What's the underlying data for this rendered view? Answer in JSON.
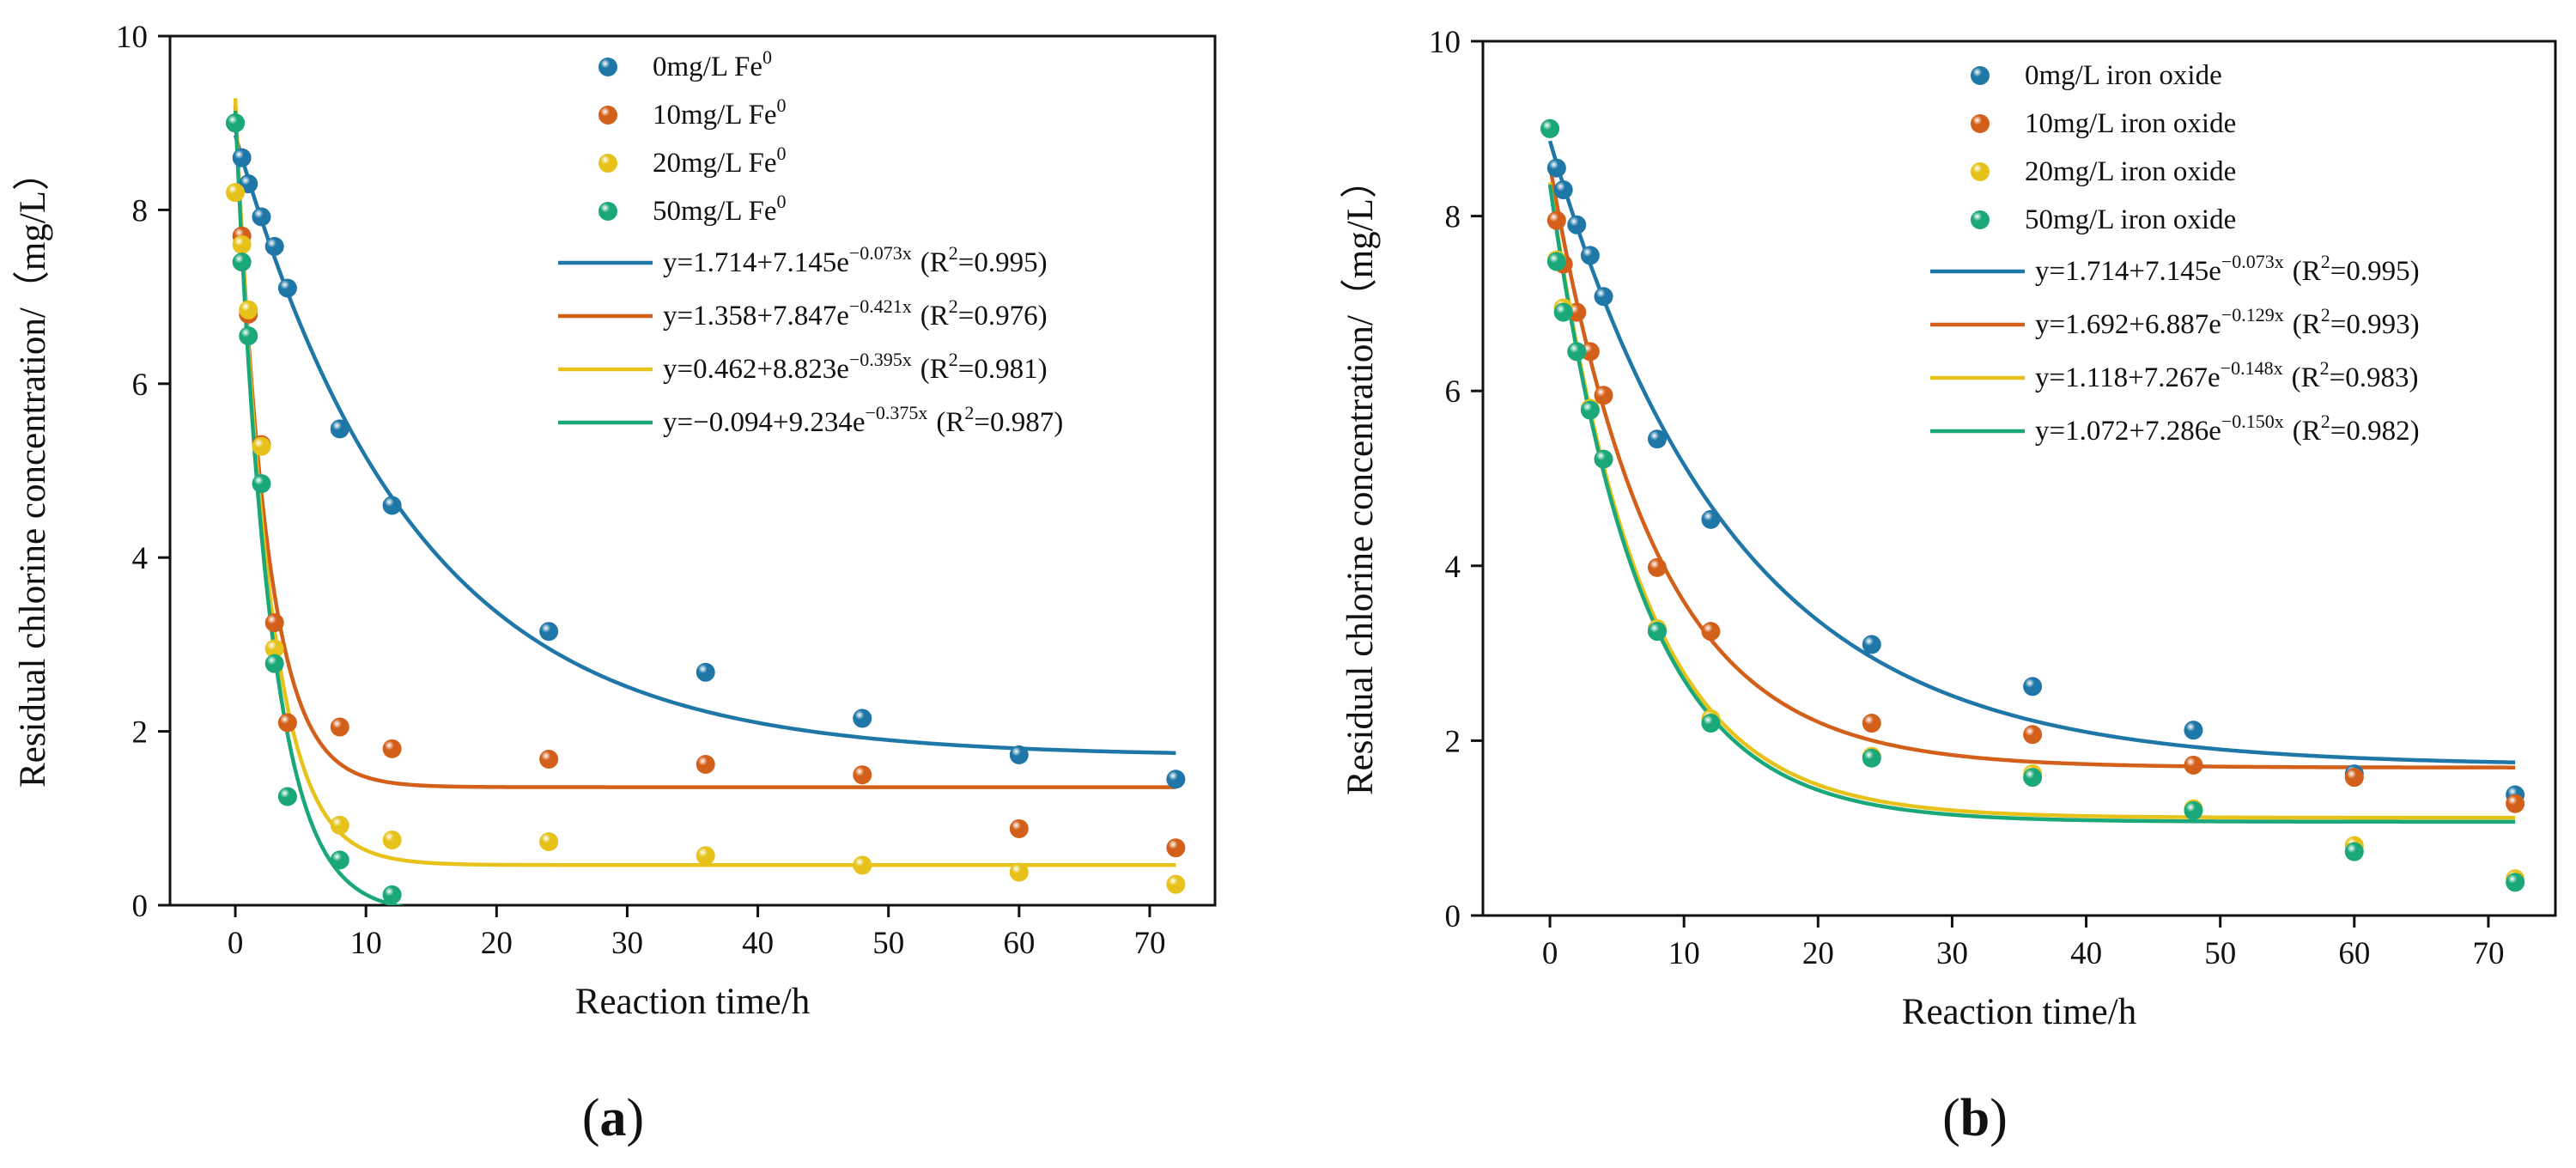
{
  "figure": {
    "panels": [
      {
        "label": "a",
        "title": "",
        "xlabel": "Reaction time/h",
        "ylabel": "Residual chlorine concentration/（mg/L）",
        "legend_position": "top-right",
        "xlim": [
          -5,
          75
        ],
        "ylim": [
          0,
          10
        ],
        "xticks": [
          0,
          10,
          20,
          30,
          40,
          50,
          60,
          70
        ],
        "yticks": [
          0,
          2,
          4,
          6,
          8,
          10
        ],
        "series": [
          {
            "name": "0mg/L Fe",
            "name_sup": "0",
            "color": "#1f77a8",
            "x": [
              0,
              0.5,
              1,
              2,
              3,
              4,
              8,
              12,
              24,
              36,
              48,
              60,
              72
            ],
            "y": [
              9.0,
              8.6,
              8.3,
              7.92,
              7.58,
              7.1,
              5.48,
              4.6,
              3.15,
              2.68,
              2.15,
              1.73,
              1.45
            ],
            "fit": {
              "a": 1.714,
              "b": 7.145,
              "k": 0.073,
              "label": "y=1.714+7.145e",
              "exp": "−0.073x",
              "r2": "(R",
              "r2_tail": "=0.995)"
            }
          },
          {
            "name": "10mg/L Fe",
            "name_sup": "0",
            "color": "#d2601a",
            "x": [
              0.5,
              1,
              2,
              3,
              4,
              8,
              12,
              24,
              36,
              48,
              60,
              72
            ],
            "y": [
              7.7,
              6.8,
              5.3,
              3.25,
              2.1,
              2.05,
              1.8,
              1.68,
              1.62,
              1.5,
              0.88,
              0.66
            ],
            "fit": {
              "a": 1.358,
              "b": 7.847,
              "k": 0.421,
              "label": "y=1.358+7.847e",
              "exp": "−0.421x",
              "r2": "(R",
              "r2_tail": "=0.976)"
            }
          },
          {
            "name": "20mg/L Fe",
            "name_sup": "0",
            "color": "#e6c21a",
            "x": [
              0,
              0.5,
              1,
              2,
              3,
              4,
              8,
              12,
              24,
              36,
              48,
              60,
              72
            ],
            "y": [
              8.2,
              7.6,
              6.85,
              5.28,
              2.95,
              1.25,
              0.92,
              0.75,
              0.73,
              0.57,
              0.46,
              0.38,
              0.24
            ],
            "fit": {
              "a": 0.462,
              "b": 8.823,
              "k": 0.395,
              "label": "y=0.462+8.823e",
              "exp": "−0.395x",
              "r2": "(R",
              "r2_tail": "=0.981)"
            }
          },
          {
            "name": "50mg/L Fe",
            "name_sup": "0",
            "color": "#1aa87a",
            "x": [
              0,
              0.5,
              1,
              2,
              3,
              4,
              8,
              12
            ],
            "y": [
              9.0,
              7.4,
              6.55,
              4.85,
              2.78,
              1.25,
              0.52,
              0.12
            ],
            "fit": {
              "a": -0.094,
              "b": 9.234,
              "k": 0.375,
              "label": "y=−0.094+9.234e",
              "exp": "−0.375x",
              "r2": "(R",
              "r2_tail": "=0.987)"
            }
          }
        ]
      },
      {
        "label": "b",
        "title": "",
        "xlabel": "Reaction time/h",
        "ylabel": "Residual chlorine concentration/（mg/L）",
        "legend_position": "top-right",
        "xlim": [
          -5,
          75
        ],
        "ylim": [
          0,
          10
        ],
        "xticks": [
          0,
          10,
          20,
          30,
          40,
          50,
          60,
          70
        ],
        "yticks": [
          0,
          2,
          4,
          6,
          8,
          10
        ],
        "series": [
          {
            "name": "0mg/L iron oxide",
            "name_sup": "",
            "color": "#1f77a8",
            "x": [
              0,
              0.5,
              1,
              2,
              3,
              4,
              8,
              12,
              24,
              36,
              48,
              60,
              72
            ],
            "y": [
              9.0,
              8.55,
              8.3,
              7.9,
              7.55,
              7.08,
              5.45,
              4.53,
              3.1,
              2.62,
              2.12,
              1.62,
              1.38
            ],
            "fit": {
              "a": 1.714,
              "b": 7.145,
              "k": 0.073,
              "label": "y=1.714+7.145e",
              "exp": "−0.073x",
              "r2": "(R",
              "r2_tail": "=0.995)"
            }
          },
          {
            "name": "10mg/L iron oxide",
            "name_sup": "",
            "color": "#d2601a",
            "x": [
              0.5,
              1,
              2,
              3,
              4,
              8,
              12,
              24,
              36,
              48,
              60,
              72
            ],
            "y": [
              7.95,
              7.45,
              6.9,
              6.45,
              5.95,
              3.98,
              3.25,
              2.2,
              2.07,
              1.72,
              1.58,
              1.28
            ],
            "fit": {
              "a": 1.692,
              "b": 6.887,
              "k": 0.129,
              "label": "y=1.692+6.887e",
              "exp": "−0.129x",
              "r2": "(R",
              "r2_tail": "=0.993)"
            }
          },
          {
            "name": "20mg/L iron oxide",
            "name_sup": "",
            "color": "#e6c21a",
            "x": [
              0,
              0.5,
              1,
              2,
              3,
              4,
              8,
              12,
              24,
              36,
              48,
              60,
              72
            ],
            "y": [
              9.0,
              7.5,
              6.95,
              6.45,
              5.8,
              5.22,
              3.28,
              2.25,
              1.82,
              1.62,
              1.22,
              0.8,
              0.42
            ],
            "fit": {
              "a": 1.118,
              "b": 7.267,
              "k": 0.148,
              "label": "y=1.118+7.267e",
              "exp": "−0.148x",
              "r2": "(R",
              "r2_tail": "=0.983)"
            }
          },
          {
            "name": "50mg/L iron oxide",
            "name_sup": "",
            "color": "#1aa87a",
            "x": [
              0,
              0.5,
              1,
              2,
              3,
              4,
              8,
              12,
              24,
              36,
              48,
              60,
              72
            ],
            "y": [
              9.0,
              7.48,
              6.9,
              6.45,
              5.78,
              5.22,
              3.25,
              2.2,
              1.8,
              1.58,
              1.2,
              0.73,
              0.38
            ],
            "fit": {
              "a": 1.072,
              "b": 7.286,
              "k": 0.15,
              "label": "y=1.072+7.286e",
              "exp": "−0.150x",
              "r2": "(R",
              "r2_tail": "=0.982)"
            }
          }
        ]
      }
    ],
    "r2_sup": "2"
  },
  "chart_data": [
    {
      "type": "scatter",
      "panel": "a",
      "xlabel": "Reaction time/h",
      "ylabel": "Residual chlorine concentration/（mg/L）",
      "xlim": [
        -5,
        75
      ],
      "ylim": [
        0,
        10
      ],
      "grid": false,
      "legend": "top-right",
      "series": [
        {
          "name": "0mg/L Fe0",
          "x": [
            0,
            0.5,
            1,
            2,
            3,
            4,
            8,
            12,
            24,
            36,
            48,
            60,
            72
          ],
          "y": [
            9.0,
            8.6,
            8.3,
            7.92,
            7.58,
            7.1,
            5.48,
            4.6,
            3.15,
            2.68,
            2.15,
            1.73,
            1.45
          ],
          "fit": "y=1.714+7.145e−0.073x (R2=0.995)"
        },
        {
          "name": "10mg/L Fe0",
          "x": [
            0.5,
            1,
            2,
            3,
            4,
            8,
            12,
            24,
            36,
            48,
            60,
            72
          ],
          "y": [
            7.7,
            6.8,
            5.3,
            3.25,
            2.1,
            2.05,
            1.8,
            1.68,
            1.62,
            1.5,
            0.88,
            0.66
          ],
          "fit": "y=1.358+7.847e−0.421x (R2=0.976)"
        },
        {
          "name": "20mg/L Fe0",
          "x": [
            0,
            0.5,
            1,
            2,
            3,
            4,
            8,
            12,
            24,
            36,
            48,
            60,
            72
          ],
          "y": [
            8.2,
            7.6,
            6.85,
            5.28,
            2.95,
            1.25,
            0.92,
            0.75,
            0.73,
            0.57,
            0.46,
            0.38,
            0.24
          ],
          "fit": "y=0.462+8.823e−0.395x (R2=0.981)"
        },
        {
          "name": "50mg/L Fe0",
          "x": [
            0,
            0.5,
            1,
            2,
            3,
            4,
            8,
            12
          ],
          "y": [
            9.0,
            7.4,
            6.55,
            4.85,
            2.78,
            1.25,
            0.52,
            0.12
          ],
          "fit": "y=−0.094+9.234e−0.375x (R2=0.987)"
        }
      ]
    },
    {
      "type": "scatter",
      "panel": "b",
      "xlabel": "Reaction time/h",
      "ylabel": "Residual chlorine concentration/（mg/L）",
      "xlim": [
        -5,
        75
      ],
      "ylim": [
        0,
        10
      ],
      "grid": false,
      "legend": "top-right",
      "series": [
        {
          "name": "0mg/L iron oxide",
          "x": [
            0,
            0.5,
            1,
            2,
            3,
            4,
            8,
            12,
            24,
            36,
            48,
            60,
            72
          ],
          "y": [
            9.0,
            8.55,
            8.3,
            7.9,
            7.55,
            7.08,
            5.45,
            4.53,
            3.1,
            2.62,
            2.12,
            1.62,
            1.38
          ],
          "fit": "y=1.714+7.145e−0.073x (R2=0.995)"
        },
        {
          "name": "10mg/L iron oxide",
          "x": [
            0.5,
            1,
            2,
            3,
            4,
            8,
            12,
            24,
            36,
            48,
            60,
            72
          ],
          "y": [
            7.95,
            7.45,
            6.9,
            6.45,
            5.95,
            3.98,
            3.25,
            2.2,
            2.07,
            1.72,
            1.58,
            1.28
          ],
          "fit": "y=1.692+6.887e−0.129x (R2=0.993)"
        },
        {
          "name": "20mg/L iron oxide",
          "x": [
            0,
            0.5,
            1,
            2,
            3,
            4,
            8,
            12,
            24,
            36,
            48,
            60,
            72
          ],
          "y": [
            9.0,
            7.5,
            6.95,
            6.45,
            5.8,
            5.22,
            3.28,
            2.25,
            1.82,
            1.62,
            1.22,
            0.8,
            0.42
          ],
          "fit": "y=1.118+7.267e−0.148x (R2=0.983)"
        },
        {
          "name": "50mg/L iron oxide",
          "x": [
            0,
            0.5,
            1,
            2,
            3,
            4,
            8,
            12,
            24,
            36,
            48,
            60,
            72
          ],
          "y": [
            9.0,
            7.48,
            6.9,
            6.45,
            5.78,
            5.22,
            3.25,
            2.2,
            1.8,
            1.58,
            1.2,
            0.73,
            0.38
          ],
          "fit": "y=1.072+7.286e−0.150x (R2=0.982)"
        }
      ]
    }
  ]
}
